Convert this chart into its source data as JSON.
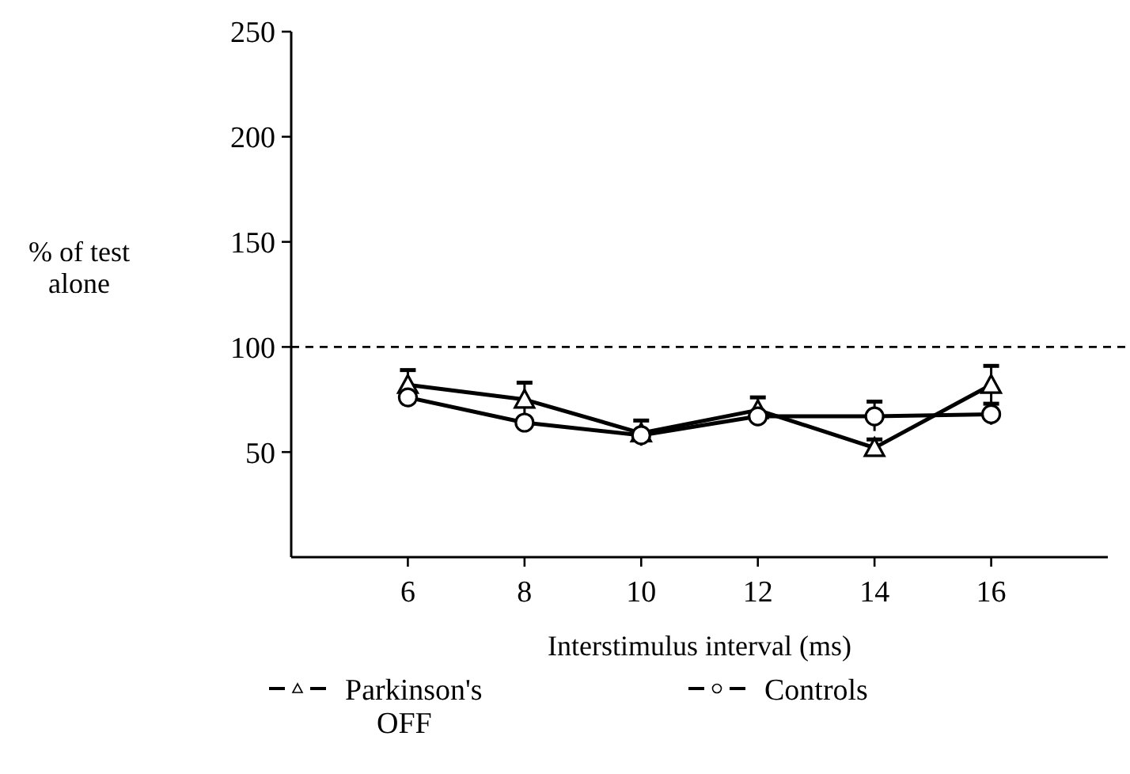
{
  "chart_data": {
    "type": "line",
    "xlabel": "Interstimulus interval (ms)",
    "ylabel": "% of test alone",
    "x": [
      6,
      8,
      10,
      12,
      14,
      16
    ],
    "series": [
      {
        "name": "Parkinson's OFF",
        "color": "#000000",
        "marker": "triangle",
        "values": [
          82,
          75,
          59,
          70,
          52,
          82
        ],
        "errors": [
          7,
          8,
          6,
          6,
          4,
          9
        ]
      },
      {
        "name": "Controls",
        "color": "#000000",
        "marker": "circle",
        "values": [
          76,
          64,
          58,
          67,
          67,
          68
        ],
        "errors": [
          null,
          null,
          null,
          null,
          7,
          5
        ]
      }
    ],
    "xlim": [
      4,
      18
    ],
    "xticks": [
      6,
      8,
      10,
      12,
      14,
      16
    ],
    "ylim": [
      0,
      250
    ],
    "yticks": [
      50,
      100,
      150,
      200,
      250
    ],
    "ref_lines": [
      {
        "axis": "y",
        "value": 100,
        "line_style": "dashed"
      }
    ],
    "legend": "bottom",
    "line_style": "solid",
    "grid": false
  }
}
